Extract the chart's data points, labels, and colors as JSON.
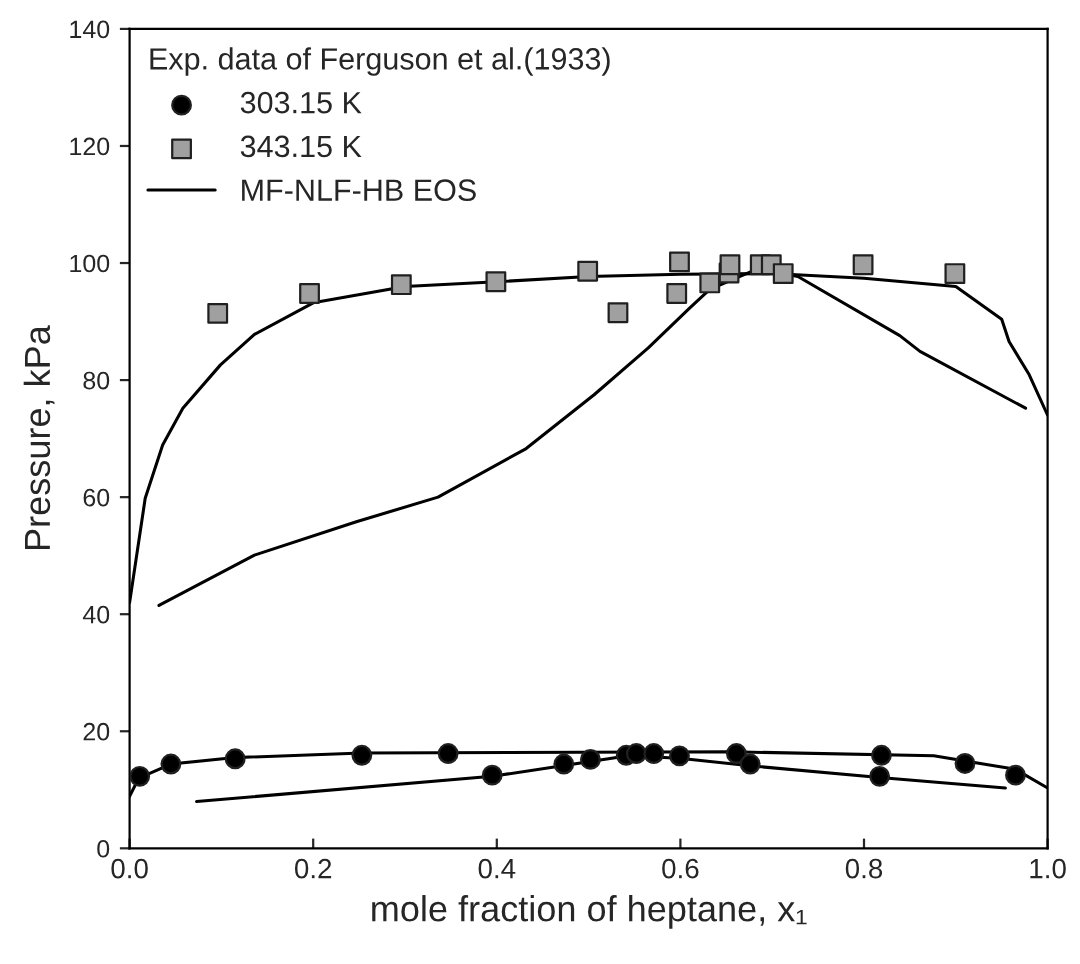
{
  "chart_data": {
    "type": "scatter",
    "xlabel": "mole fraction of heptane, x₁",
    "ylabel": "Pressure, kPa",
    "legend_title": "Exp. data of Ferguson et al.(1933)",
    "legend": "top left",
    "grid": false,
    "xlim": [
      0,
      1
    ],
    "ylim": [
      0,
      140
    ],
    "xticks": [
      {
        "value": 0,
        "label": "0.0"
      },
      {
        "value": 0.2,
        "label": "0.2"
      },
      {
        "value": 0.4,
        "label": "0.4"
      },
      {
        "value": 0.6,
        "label": "0.6"
      },
      {
        "value": 0.8,
        "label": "0.8"
      },
      {
        "value": 1,
        "label": "1.0"
      }
    ],
    "yticks": [
      0,
      20,
      40,
      60,
      80,
      100,
      120,
      140
    ],
    "series": [
      {
        "name": "303.15 K",
        "marker": "circle",
        "color": "#000000",
        "x": [
          0.011,
          0.045,
          0.115,
          0.253,
          0.347,
          0.395,
          0.473,
          0.502,
          0.541,
          0.552,
          0.571,
          0.599,
          0.661,
          0.676,
          0.819,
          0.817,
          0.91,
          0.965
        ],
        "values": [
          12.3,
          14.4,
          15.3,
          15.9,
          16.2,
          12.5,
          14.4,
          15.2,
          15.9,
          16.2,
          16.2,
          15.8,
          16.2,
          14.4,
          15.9,
          12.3,
          14.5,
          12.5
        ]
      },
      {
        "name": "343.15 K",
        "marker": "square",
        "color": "#a0a0a0",
        "x": [
          0.096,
          0.196,
          0.296,
          0.399,
          0.499,
          0.599,
          0.532,
          0.596,
          0.632,
          0.653,
          0.654,
          0.687,
          0.699,
          0.712,
          0.799,
          0.899
        ],
        "values": [
          91.4,
          94.8,
          96.3,
          96.8,
          98.6,
          100.2,
          91.5,
          94.8,
          96.6,
          98.3,
          99.7,
          99.7,
          99.7,
          98.2,
          99.7,
          98.2
        ]
      },
      {
        "name": "MF-NLF-HB EOS",
        "type": "line",
        "line_style": "solid",
        "color": "#000000",
        "x": [
          0,
          0.017,
          0.036,
          0.058,
          0.099,
          0.136,
          0.2,
          0.3,
          0.4,
          0.5,
          0.6,
          0.7,
          0.8,
          0.9,
          0.95,
          0.958,
          0.98,
          1.0
        ],
        "values": [
          42,
          59.8,
          68.9,
          75.2,
          82.6,
          87.8,
          93.2,
          96,
          96.8,
          97.7,
          98.1,
          98.2,
          97.4,
          96,
          90.4,
          86.6,
          80.9,
          74
        ]
      },
      {
        "type": "line",
        "line_style": "solid",
        "color": "#000000",
        "x": [
          0.032,
          0.136,
          0.247,
          0.336,
          0.432,
          0.506,
          0.565,
          0.61,
          0.632,
          0.684,
          0.728,
          0.839,
          0.861,
          0.976
        ],
        "values": [
          41.5,
          50.1,
          55.8,
          60,
          68.3,
          77.5,
          85.5,
          92.3,
          95.5,
          99,
          97.7,
          87.6,
          84.9,
          75.2
        ]
      },
      {
        "type": "line",
        "line_style": "solid",
        "color": "#000000",
        "x": [
          0,
          0.01,
          0.045,
          0.115,
          0.253,
          0.654,
          0.876,
          0.965,
          1.0
        ],
        "values": [
          8.9,
          12,
          14.4,
          15.5,
          16.3,
          16.5,
          15.8,
          13.5,
          10.3
        ]
      },
      {
        "type": "line",
        "line_style": "solid",
        "color": "#000000",
        "x": [
          0.073,
          0.395,
          0.543,
          0.599,
          0.676,
          0.817,
          0.954
        ],
        "values": [
          8,
          12.3,
          15.8,
          15.4,
          14.1,
          12.1,
          10.3
        ]
      }
    ]
  }
}
